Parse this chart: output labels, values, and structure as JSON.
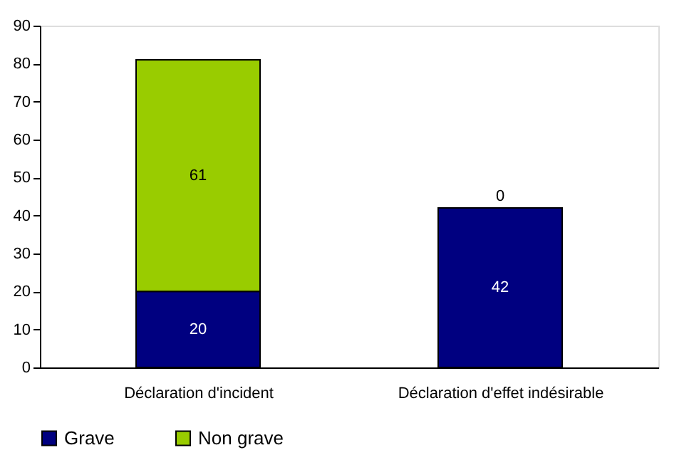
{
  "chart_data": {
    "type": "bar",
    "stacked": true,
    "categories": [
      "Déclaration d'incident",
      "Déclaration d'effet indésirable"
    ],
    "series": [
      {
        "name": "Grave",
        "color": "#000080",
        "values": [
          20,
          42
        ]
      },
      {
        "name": "Non grave",
        "color": "#99cc00",
        "values": [
          61,
          0
        ]
      }
    ],
    "ylim": [
      0,
      90
    ],
    "yticks": [
      0,
      10,
      20,
      30,
      40,
      50,
      60,
      70,
      80,
      90
    ],
    "grid": false,
    "legend": "bottom left",
    "data_labels": true
  }
}
